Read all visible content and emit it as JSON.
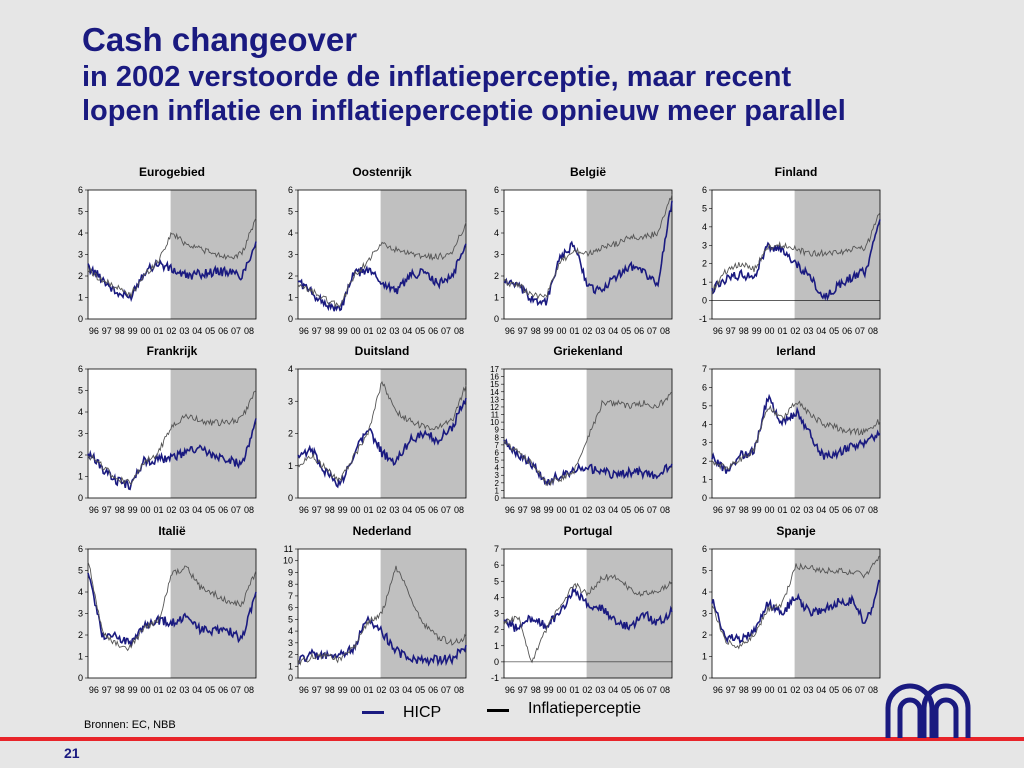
{
  "title": {
    "line1": "Cash changeover",
    "line2": "in 2002 verstoorde de inflatieperceptie, maar recent",
    "line3": "lopen inflatie en inflatieperceptie opnieuw meer parallel"
  },
  "legend": {
    "hicp": "HICP",
    "perception": "Inflatieperceptie"
  },
  "source": "Bronnen: EC, NBB",
  "page_number": "21",
  "colors": {
    "hicp": "#1a1a80",
    "perception": "#555555",
    "shade": "#c0c0c0",
    "title": "#1a1a80",
    "rule": "#e8242a"
  },
  "chart_data": [
    {
      "type": "line",
      "title": "Eurogebied",
      "x_ticks": [
        "96",
        "97",
        "98",
        "99",
        "00",
        "01",
        "02",
        "03",
        "04",
        "05",
        "06",
        "07",
        "08"
      ],
      "x": [
        "96",
        "97",
        "98",
        "99",
        "00",
        "01",
        "02",
        "03",
        "04",
        "05",
        "06",
        "07",
        "08"
      ],
      "ylim": [
        0,
        6
      ],
      "y_ticks": [
        0,
        1,
        2,
        3,
        4,
        5,
        6
      ],
      "shaded_from": "02",
      "series": [
        {
          "name": "HICP",
          "values": [
            2.4,
            1.9,
            1.2,
            1.0,
            2.2,
            2.6,
            2.3,
            2.0,
            2.1,
            2.2,
            2.2,
            2.0,
            3.6
          ]
        },
        {
          "name": "Inflatieperceptie",
          "values": [
            2.3,
            1.8,
            1.5,
            1.1,
            2.0,
            2.7,
            4.0,
            3.5,
            3.3,
            3.0,
            2.9,
            3.0,
            4.7
          ]
        }
      ]
    },
    {
      "type": "line",
      "title": "Oostenrijk",
      "x_ticks": [
        "96",
        "97",
        "98",
        "99",
        "00",
        "01",
        "02",
        "03",
        "04",
        "05",
        "06",
        "07",
        "08"
      ],
      "x": [
        "96",
        "97",
        "98",
        "99",
        "00",
        "01",
        "02",
        "03",
        "04",
        "05",
        "06",
        "07",
        "08"
      ],
      "ylim": [
        0,
        6
      ],
      "y_ticks": [
        0,
        1,
        2,
        3,
        4,
        5,
        6
      ],
      "shaded_from": "02",
      "series": [
        {
          "name": "HICP",
          "values": [
            1.8,
            1.2,
            0.7,
            0.4,
            2.1,
            2.3,
            1.7,
            1.3,
            2.0,
            2.2,
            1.6,
            2.0,
            3.5
          ]
        },
        {
          "name": "Inflatieperceptie",
          "values": [
            1.5,
            1.3,
            0.9,
            0.6,
            2.0,
            2.7,
            3.5,
            3.2,
            3.0,
            2.9,
            2.9,
            3.0,
            4.5
          ]
        }
      ]
    },
    {
      "type": "line",
      "title": "België",
      "x_ticks": [
        "96",
        "97",
        "98",
        "99",
        "00",
        "01",
        "02",
        "03",
        "04",
        "05",
        "06",
        "07",
        "08"
      ],
      "x": [
        "96",
        "97",
        "98",
        "99",
        "00",
        "01",
        "02",
        "03",
        "04",
        "05",
        "06",
        "07",
        "08"
      ],
      "ylim": [
        0,
        6
      ],
      "y_ticks": [
        0,
        1,
        2,
        3,
        4,
        5,
        6
      ],
      "shaded_from": "02",
      "series": [
        {
          "name": "HICP",
          "values": [
            1.8,
            1.5,
            0.9,
            0.8,
            2.8,
            3.5,
            1.5,
            1.3,
            2.0,
            2.5,
            2.2,
            1.6,
            5.5
          ]
        },
        {
          "name": "Inflatieperceptie",
          "values": [
            1.7,
            1.6,
            1.1,
            1.0,
            2.6,
            3.2,
            3.0,
            3.3,
            3.5,
            3.8,
            3.8,
            4.0,
            5.8
          ]
        }
      ]
    },
    {
      "type": "line",
      "title": "Finland",
      "x_ticks": [
        "96",
        "97",
        "98",
        "99",
        "00",
        "01",
        "02",
        "03",
        "04",
        "05",
        "06",
        "07",
        "08"
      ],
      "x": [
        "96",
        "97",
        "98",
        "99",
        "00",
        "01",
        "02",
        "03",
        "04",
        "05",
        "06",
        "07",
        "08"
      ],
      "ylim": [
        -1,
        6
      ],
      "y_ticks": [
        -1,
        0,
        1,
        2,
        3,
        4,
        5,
        6
      ],
      "shaded_from": "02",
      "series": [
        {
          "name": "HICP",
          "values": [
            0.6,
            1.2,
            1.4,
            1.3,
            3.0,
            2.7,
            2.0,
            1.3,
            0.1,
            0.8,
            1.3,
            1.6,
            4.4
          ]
        },
        {
          "name": "Inflatieperceptie",
          "values": [
            0.5,
            1.6,
            2.0,
            1.7,
            2.9,
            3.0,
            2.8,
            2.5,
            2.6,
            2.6,
            2.8,
            2.9,
            4.8
          ]
        }
      ]
    },
    {
      "type": "line",
      "title": "Frankrijk",
      "x_ticks": [
        "96",
        "97",
        "98",
        "99",
        "00",
        "01",
        "02",
        "03",
        "04",
        "05",
        "06",
        "07",
        "08"
      ],
      "x": [
        "96",
        "97",
        "98",
        "99",
        "00",
        "01",
        "02",
        "03",
        "04",
        "05",
        "06",
        "07",
        "08"
      ],
      "ylim": [
        0,
        6
      ],
      "y_ticks": [
        0,
        1,
        2,
        3,
        4,
        5,
        6
      ],
      "shaded_from": "02",
      "series": [
        {
          "name": "HICP",
          "values": [
            2.1,
            1.4,
            0.8,
            0.6,
            1.7,
            1.8,
            1.9,
            2.1,
            2.3,
            1.9,
            1.8,
            1.5,
            3.7
          ]
        },
        {
          "name": "Inflatieperceptie",
          "values": [
            2.0,
            1.5,
            0.9,
            0.7,
            1.6,
            2.1,
            3.4,
            3.8,
            3.6,
            3.5,
            3.5,
            3.7,
            5.0
          ]
        }
      ]
    },
    {
      "type": "line",
      "title": "Duitsland",
      "x_ticks": [
        "96",
        "97",
        "98",
        "99",
        "00",
        "01",
        "02",
        "03",
        "04",
        "05",
        "06",
        "07",
        "08"
      ],
      "x": [
        "96",
        "97",
        "98",
        "99",
        "00",
        "01",
        "02",
        "03",
        "04",
        "05",
        "06",
        "07",
        "08"
      ],
      "ylim": [
        0,
        4
      ],
      "y_ticks": [
        0,
        1,
        2,
        3,
        4
      ],
      "shaded_from": "02",
      "series": [
        {
          "name": "HICP",
          "values": [
            1.2,
            1.5,
            0.8,
            0.4,
            1.4,
            2.2,
            1.4,
            1.1,
            1.8,
            2.0,
            1.8,
            2.2,
            3.1
          ]
        },
        {
          "name": "Inflatieperceptie",
          "values": [
            1.0,
            1.3,
            0.9,
            0.5,
            1.3,
            2.0,
            3.6,
            2.7,
            2.4,
            2.2,
            2.2,
            2.4,
            3.5
          ]
        }
      ]
    },
    {
      "type": "line",
      "title": "Griekenland",
      "x_ticks": [
        "96",
        "97",
        "98",
        "99",
        "00",
        "01",
        "02",
        "03",
        "04",
        "05",
        "06",
        "07",
        "08"
      ],
      "x": [
        "96",
        "97",
        "98",
        "99",
        "00",
        "01",
        "02",
        "03",
        "04",
        "05",
        "06",
        "07",
        "08"
      ],
      "ylim": [
        0,
        17
      ],
      "y_ticks": [
        0,
        1,
        2,
        3,
        4,
        5,
        6,
        7,
        8,
        9,
        10,
        11,
        12,
        13,
        14,
        15,
        16,
        17
      ],
      "shaded_from": "02",
      "series": [
        {
          "name": "HICP",
          "values": [
            8.0,
            5.5,
            4.5,
            2.2,
            2.9,
            3.7,
            3.9,
            3.5,
            3.0,
            3.5,
            3.3,
            3.0,
            4.5
          ]
        },
        {
          "name": "Inflatieperceptie",
          "values": [
            7.5,
            6.0,
            4.5,
            2.0,
            2.5,
            3.5,
            8.0,
            12.5,
            12.5,
            12.0,
            12.5,
            12.0,
            14.0
          ]
        }
      ]
    },
    {
      "type": "line",
      "title": "Ierland",
      "x_ticks": [
        "96",
        "97",
        "98",
        "99",
        "00",
        "01",
        "02",
        "03",
        "04",
        "05",
        "06",
        "07",
        "08"
      ],
      "x": [
        "96",
        "97",
        "98",
        "99",
        "00",
        "01",
        "02",
        "03",
        "04",
        "05",
        "06",
        "07",
        "08"
      ],
      "ylim": [
        0,
        7
      ],
      "y_ticks": [
        0,
        1,
        2,
        3,
        4,
        5,
        6,
        7
      ],
      "shaded_from": "02",
      "series": [
        {
          "name": "HICP",
          "values": [
            2.2,
            1.5,
            2.3,
            2.5,
            5.5,
            4.0,
            4.7,
            3.5,
            2.2,
            2.5,
            2.8,
            3.0,
            3.5
          ]
        },
        {
          "name": "Inflatieperceptie",
          "values": [
            2.0,
            1.6,
            2.1,
            2.6,
            5.0,
            4.3,
            5.3,
            4.5,
            4.0,
            3.8,
            3.6,
            3.6,
            4.2
          ]
        }
      ]
    },
    {
      "type": "line",
      "title": "Italië",
      "x_ticks": [
        "96",
        "97",
        "98",
        "99",
        "00",
        "01",
        "02",
        "03",
        "04",
        "05",
        "06",
        "07",
        "08"
      ],
      "x": [
        "96",
        "97",
        "98",
        "99",
        "00",
        "01",
        "02",
        "03",
        "04",
        "05",
        "06",
        "07",
        "08"
      ],
      "ylim": [
        0,
        6
      ],
      "y_ticks": [
        0,
        1,
        2,
        3,
        4,
        5,
        6
      ],
      "shaded_from": "02",
      "series": [
        {
          "name": "HICP",
          "values": [
            5.0,
            2.0,
            2.0,
            1.6,
            2.4,
            2.7,
            2.6,
            2.8,
            2.3,
            2.2,
            2.2,
            1.8,
            4.0
          ]
        },
        {
          "name": "Inflatieperceptie",
          "values": [
            5.5,
            2.2,
            1.6,
            1.4,
            2.3,
            2.6,
            4.8,
            5.2,
            4.2,
            3.9,
            3.6,
            3.4,
            5.0
          ]
        }
      ]
    },
    {
      "type": "line",
      "title": "Nederland",
      "x_ticks": [
        "96",
        "97",
        "98",
        "99",
        "00",
        "01",
        "02",
        "03",
        "04",
        "05",
        "06",
        "07",
        "08"
      ],
      "x": [
        "96",
        "97",
        "98",
        "99",
        "00",
        "01",
        "02",
        "03",
        "04",
        "05",
        "06",
        "07",
        "08"
      ],
      "ylim": [
        0,
        11
      ],
      "y_ticks": [
        0,
        1,
        2,
        3,
        4,
        5,
        6,
        7,
        8,
        9,
        10,
        11
      ],
      "shaded_from": "02",
      "series": [
        {
          "name": "HICP",
          "values": [
            1.5,
            2.0,
            1.8,
            2.0,
            2.6,
            5.2,
            3.9,
            2.4,
            1.5,
            1.5,
            1.6,
            1.6,
            2.8
          ]
        },
        {
          "name": "Inflatieperceptie",
          "values": [
            1.2,
            1.8,
            2.0,
            1.5,
            2.6,
            4.8,
            5.5,
            9.5,
            7.0,
            4.5,
            3.5,
            3.0,
            3.5
          ]
        }
      ]
    },
    {
      "type": "line",
      "title": "Portugal",
      "x_ticks": [
        "96",
        "97",
        "98",
        "99",
        "00",
        "01",
        "02",
        "03",
        "04",
        "05",
        "06",
        "07",
        "08"
      ],
      "x": [
        "96",
        "97",
        "98",
        "99",
        "00",
        "01",
        "02",
        "03",
        "04",
        "05",
        "06",
        "07",
        "08"
      ],
      "ylim": [
        -1,
        7
      ],
      "y_ticks": [
        -1,
        0,
        1,
        2,
        3,
        4,
        5,
        6,
        7
      ],
      "shaded_from": "02",
      "series": [
        {
          "name": "HICP",
          "values": [
            2.6,
            2.0,
            2.8,
            2.2,
            3.0,
            4.4,
            3.6,
            3.3,
            2.5,
            2.1,
            3.0,
            2.4,
            3.1
          ]
        },
        {
          "name": "Inflatieperceptie",
          "values": [
            2.4,
            2.8,
            0.0,
            2.0,
            3.5,
            4.8,
            4.2,
            5.3,
            5.2,
            4.5,
            4.2,
            4.3,
            5.0
          ]
        }
      ]
    },
    {
      "type": "line",
      "title": "Spanje",
      "x_ticks": [
        "96",
        "97",
        "98",
        "99",
        "00",
        "01",
        "02",
        "03",
        "04",
        "05",
        "06",
        "07",
        "08"
      ],
      "x": [
        "96",
        "97",
        "98",
        "99",
        "00",
        "01",
        "02",
        "03",
        "04",
        "05",
        "06",
        "07",
        "08"
      ],
      "ylim": [
        0,
        6
      ],
      "y_ticks": [
        0,
        1,
        2,
        3,
        4,
        5,
        6
      ],
      "shaded_from": "02",
      "series": [
        {
          "name": "HICP",
          "values": [
            3.6,
            1.9,
            1.8,
            2.2,
            3.5,
            3.0,
            3.8,
            3.0,
            3.2,
            3.5,
            3.6,
            2.5,
            4.5
          ]
        },
        {
          "name": "Inflatieperceptie",
          "values": [
            3.4,
            1.7,
            1.5,
            2.0,
            3.2,
            3.4,
            5.2,
            5.1,
            5.0,
            5.0,
            4.9,
            4.8,
            5.7
          ]
        }
      ]
    }
  ]
}
